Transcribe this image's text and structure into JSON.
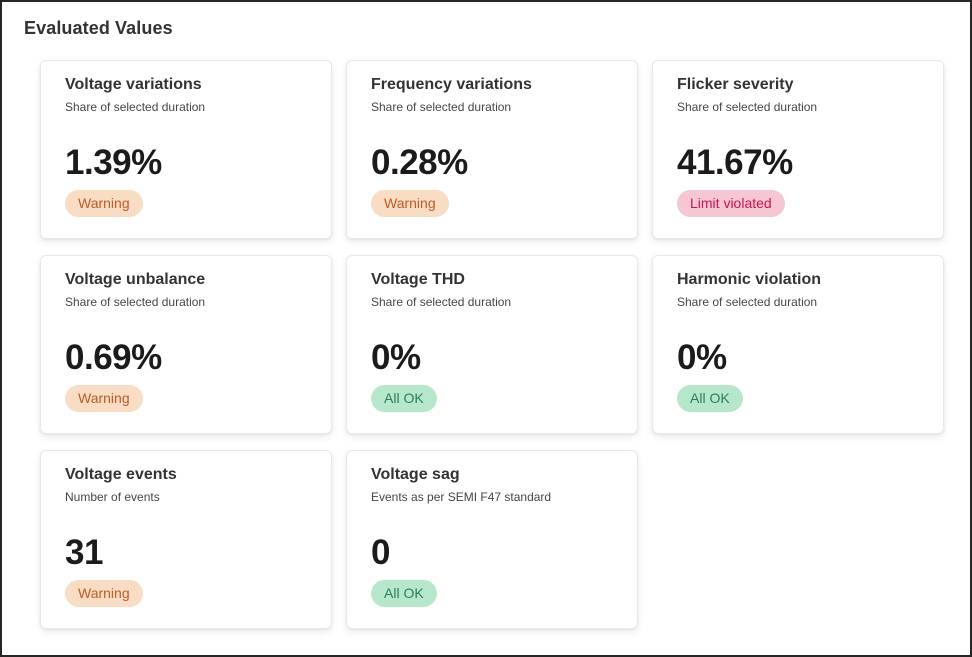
{
  "page": {
    "title": "Evaluated Values"
  },
  "colors": {
    "frame_border": "#262626",
    "card_border": "#e9e9e9",
    "title_text": "#333333",
    "value_text": "#1b1b1b",
    "warning_bg": "#f8dcc3",
    "warning_text": "#bf5b23",
    "limit_violated_bg": "#f6c6d2",
    "limit_violated_text": "#c9134e",
    "all_ok_bg": "#b7e7cb",
    "all_ok_text": "#2a7d5f"
  },
  "cards": [
    {
      "title": "Voltage variations",
      "subtitle": "Share of selected duration",
      "value": "1.39%",
      "status": "Warning",
      "status_type": "warning"
    },
    {
      "title": "Frequency variations",
      "subtitle": "Share of selected duration",
      "value": "0.28%",
      "status": "Warning",
      "status_type": "warning"
    },
    {
      "title": "Flicker severity",
      "subtitle": "Share of selected duration",
      "value": "41.67%",
      "status": "Limit violated",
      "status_type": "danger"
    },
    {
      "title": "Voltage unbalance",
      "subtitle": "Share of selected duration",
      "value": "0.69%",
      "status": "Warning",
      "status_type": "warning"
    },
    {
      "title": "Voltage THD",
      "subtitle": "Share of selected duration",
      "value": "0%",
      "status": "All OK",
      "status_type": "ok"
    },
    {
      "title": "Harmonic violation",
      "subtitle": "Share of selected duration",
      "value": "0%",
      "status": "All OK",
      "status_type": "ok"
    },
    {
      "title": "Voltage events",
      "subtitle": "Number of events",
      "value": "31",
      "status": "Warning",
      "status_type": "warning"
    },
    {
      "title": "Voltage sag",
      "subtitle": "Events as per SEMI F47 standard",
      "value": "0",
      "status": "All OK",
      "status_type": "ok"
    }
  ]
}
